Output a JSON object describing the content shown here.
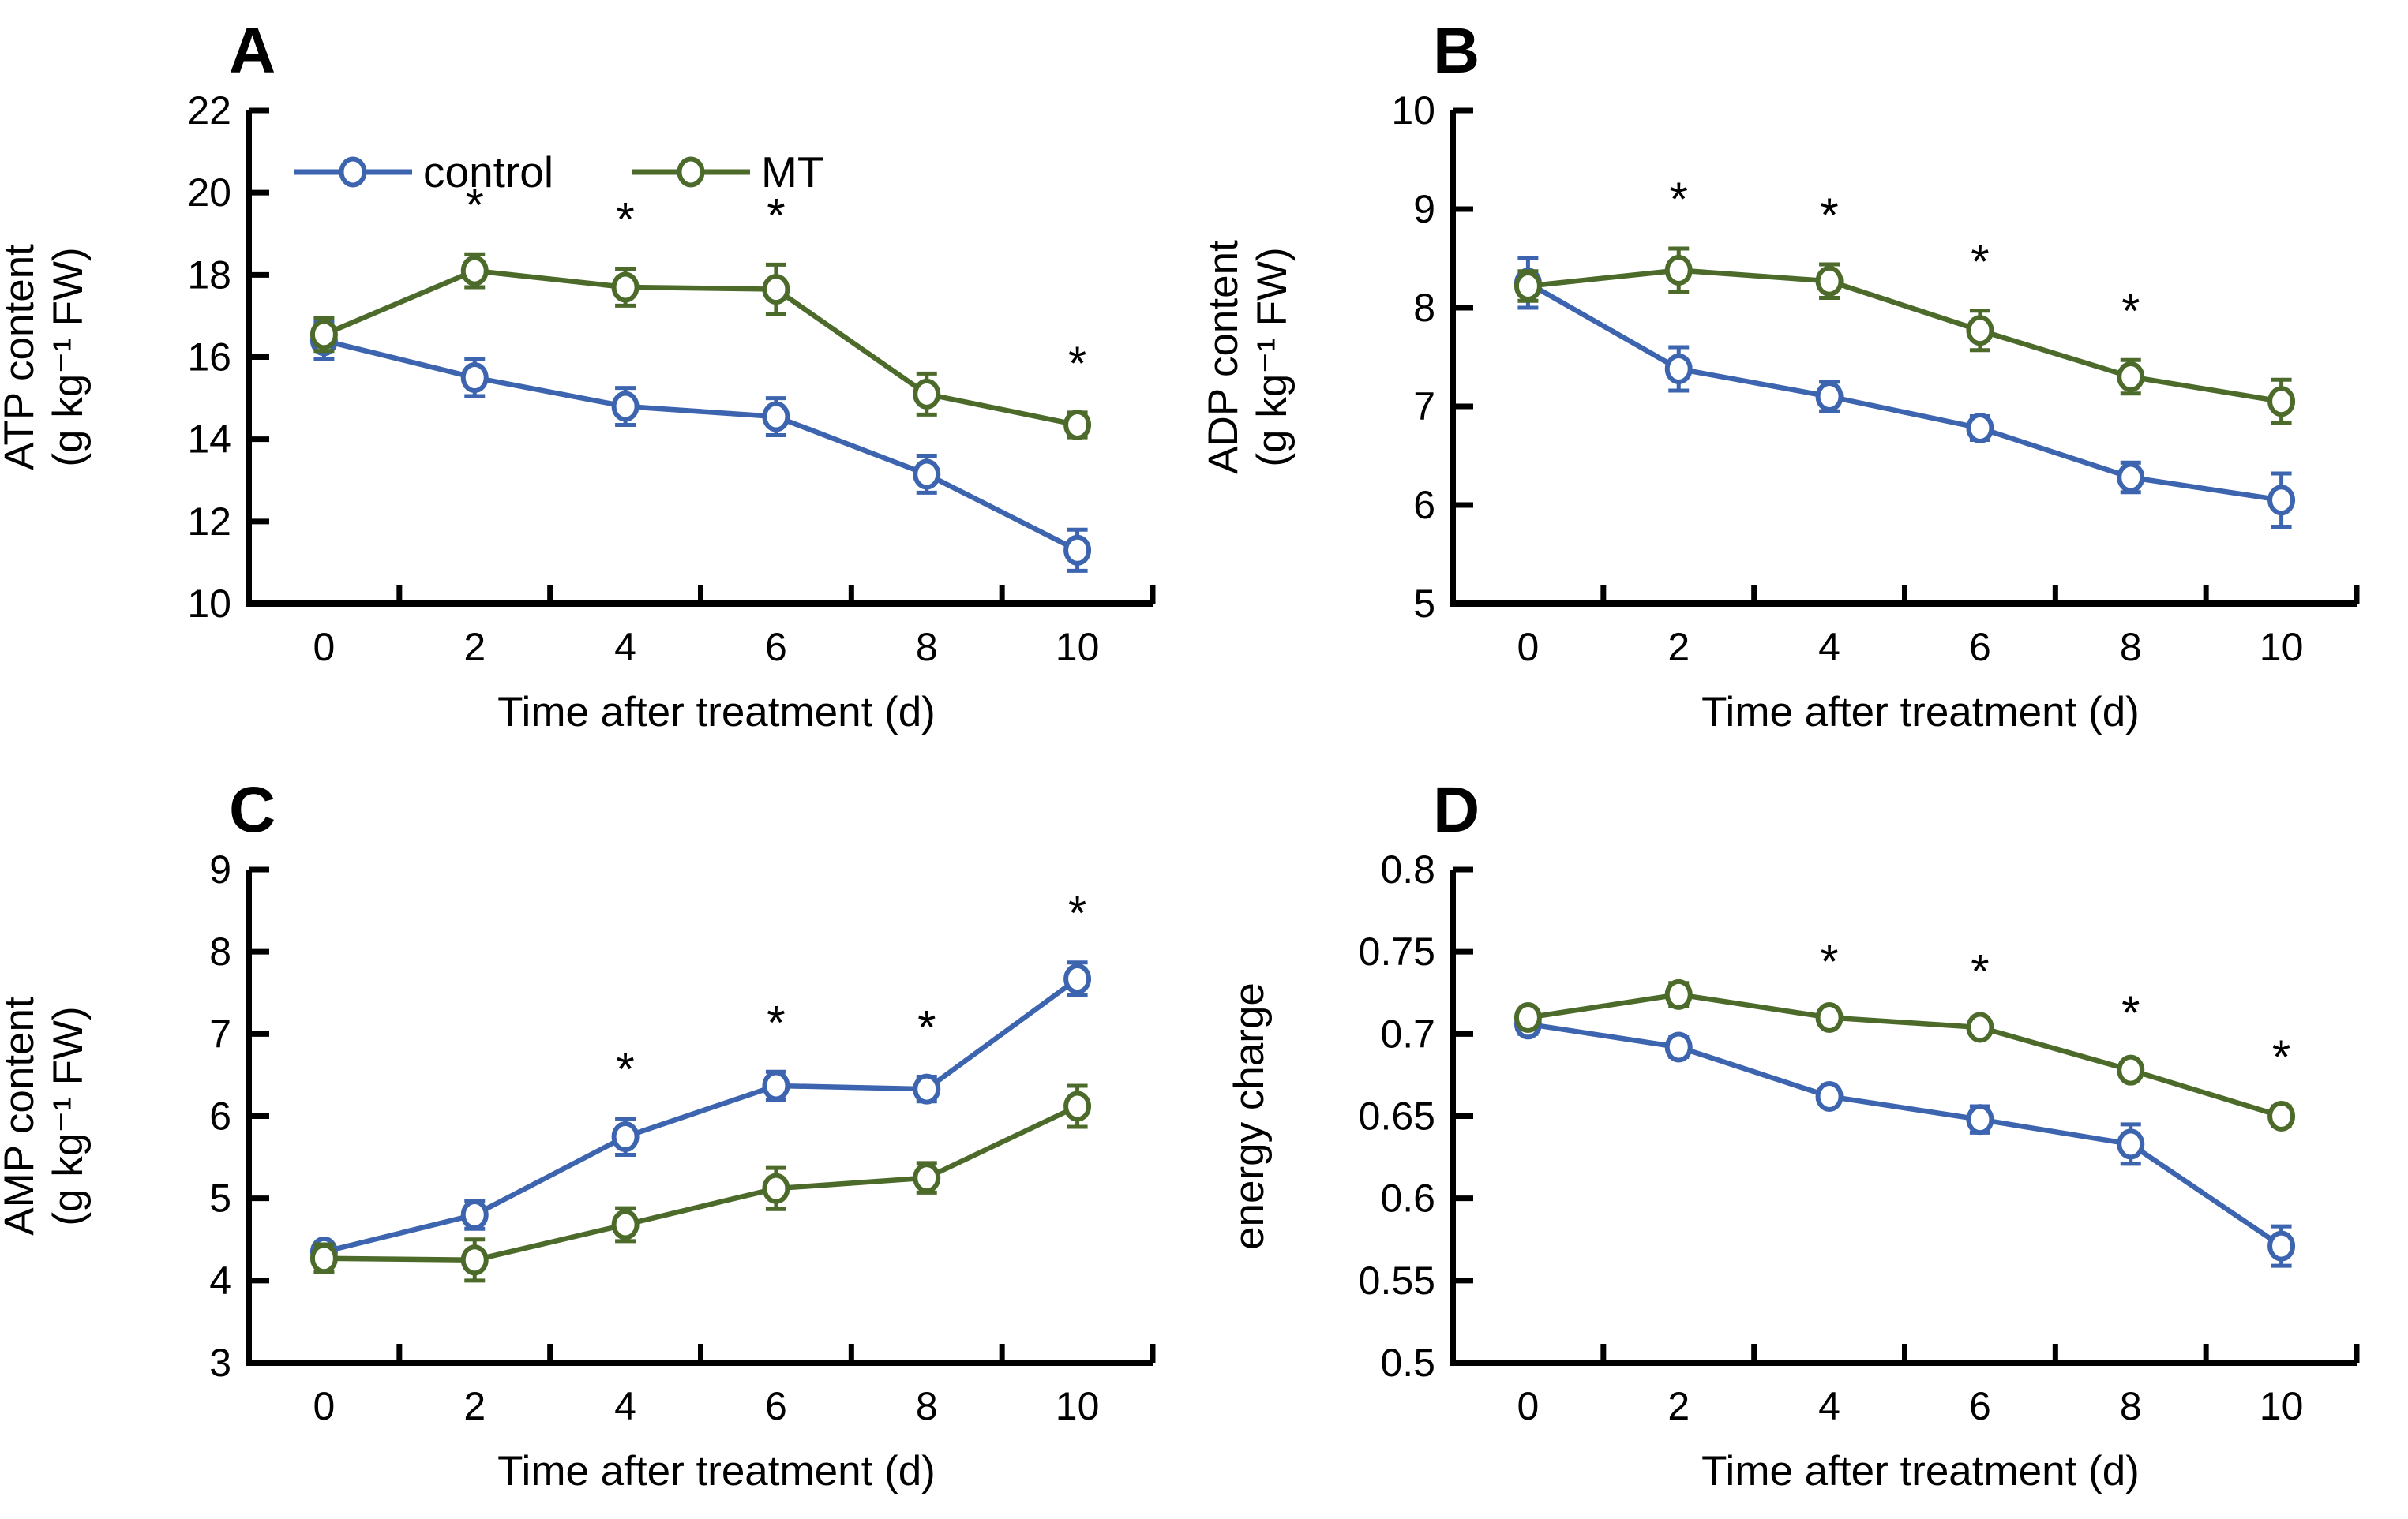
{
  "figure": {
    "xlabel": "Time after treatment (d)",
    "x_categories": [
      "0",
      "2",
      "4",
      "6",
      "8",
      "10"
    ],
    "legend": {
      "position": "top-inside-panel-A",
      "items": [
        {
          "label": "control",
          "color": "#3C64AF"
        },
        {
          "label": "MT",
          "color": "#4C6B2B"
        }
      ]
    },
    "significance_marker": "*"
  },
  "chart_data": [
    {
      "panel_letter": "A",
      "type": "line",
      "ylabel_lines": [
        "ATP content",
        "(g kg⁻¹ FW)"
      ],
      "xlabel": "Time after treatment (d)",
      "x": [
        0,
        2,
        4,
        6,
        8,
        10
      ],
      "ylim": [
        10,
        22
      ],
      "yticks": [
        "10",
        "12",
        "14",
        "16",
        "18",
        "20",
        "22"
      ],
      "grid": false,
      "show_legend": true,
      "series": [
        {
          "name": "control",
          "color": "#3C64AF",
          "values": [
            16.4,
            15.5,
            14.8,
            14.55,
            13.15,
            11.3
          ],
          "errors": [
            0.45,
            0.45,
            0.45,
            0.45,
            0.45,
            0.5
          ],
          "asterisk_days": []
        },
        {
          "name": "MT",
          "color": "#4C6B2B",
          "values": [
            16.55,
            18.1,
            17.7,
            17.65,
            15.1,
            14.35
          ],
          "errors": [
            0.4,
            0.4,
            0.45,
            0.6,
            0.5,
            0.3
          ],
          "asterisk_days": [
            2,
            4,
            6,
            10
          ]
        }
      ]
    },
    {
      "panel_letter": "B",
      "type": "line",
      "ylabel_lines": [
        "ADP content",
        "(g kg⁻¹ FW)"
      ],
      "xlabel": "Time after treatment (d)",
      "x": [
        0,
        2,
        4,
        6,
        8,
        10
      ],
      "ylim": [
        5,
        10
      ],
      "yticks": [
        "5",
        "6",
        "7",
        "8",
        "9",
        "10"
      ],
      "grid": false,
      "show_legend": false,
      "series": [
        {
          "name": "control",
          "color": "#3C64AF",
          "values": [
            8.25,
            7.38,
            7.1,
            6.78,
            6.28,
            6.05
          ],
          "errors": [
            0.25,
            0.22,
            0.15,
            0.12,
            0.15,
            0.27
          ],
          "asterisk_days": []
        },
        {
          "name": "MT",
          "color": "#4C6B2B",
          "values": [
            8.22,
            8.38,
            8.27,
            7.77,
            7.3,
            7.05
          ],
          "errors": [
            0.15,
            0.22,
            0.17,
            0.2,
            0.17,
            0.22
          ],
          "asterisk_days": [
            2,
            4,
            6,
            8
          ]
        }
      ]
    },
    {
      "panel_letter": "C",
      "type": "line",
      "ylabel_lines": [
        "AMP content",
        "(g kg⁻¹ FW)"
      ],
      "xlabel": "Time after treatment (d)",
      "x": [
        0,
        2,
        4,
        6,
        8,
        10
      ],
      "ylim": [
        3,
        9
      ],
      "yticks": [
        "3",
        "4",
        "5",
        "6",
        "7",
        "8",
        "9"
      ],
      "grid": false,
      "show_legend": false,
      "series": [
        {
          "name": "control",
          "color": "#3C64AF",
          "values": [
            4.35,
            4.8,
            5.75,
            6.37,
            6.33,
            7.67
          ],
          "errors": [
            0.1,
            0.17,
            0.22,
            0.17,
            0.15,
            0.2
          ],
          "asterisk_days": [
            4,
            6,
            8,
            10
          ]
        },
        {
          "name": "MT",
          "color": "#4C6B2B",
          "values": [
            4.27,
            4.25,
            4.68,
            5.12,
            5.25,
            6.12
          ],
          "errors": [
            0.17,
            0.25,
            0.2,
            0.25,
            0.18,
            0.25
          ],
          "asterisk_days": []
        }
      ]
    },
    {
      "panel_letter": "D",
      "type": "line",
      "ylabel_lines": [
        "energy charge"
      ],
      "xlabel": "Time after treatment (d)",
      "x": [
        0,
        2,
        4,
        6,
        8,
        10
      ],
      "ylim": [
        0.5,
        0.8
      ],
      "yticks": [
        "0.5",
        "0.55",
        "0.6",
        "0.65",
        "0.7",
        "0.75",
        "0.8"
      ],
      "grid": false,
      "show_legend": false,
      "series": [
        {
          "name": "control",
          "color": "#3C64AF",
          "values": [
            0.706,
            0.692,
            0.662,
            0.648,
            0.633,
            0.571
          ],
          "errors": [
            0.006,
            0.006,
            0.004,
            0.008,
            0.012,
            0.012
          ],
          "asterisk_days": []
        },
        {
          "name": "MT",
          "color": "#4C6B2B",
          "values": [
            0.71,
            0.724,
            0.71,
            0.704,
            0.678,
            0.65
          ],
          "errors": [
            0.004,
            0.007,
            0.004,
            0.004,
            0.005,
            0.006
          ],
          "asterisk_days": [
            4,
            6,
            8,
            10
          ]
        }
      ]
    }
  ]
}
